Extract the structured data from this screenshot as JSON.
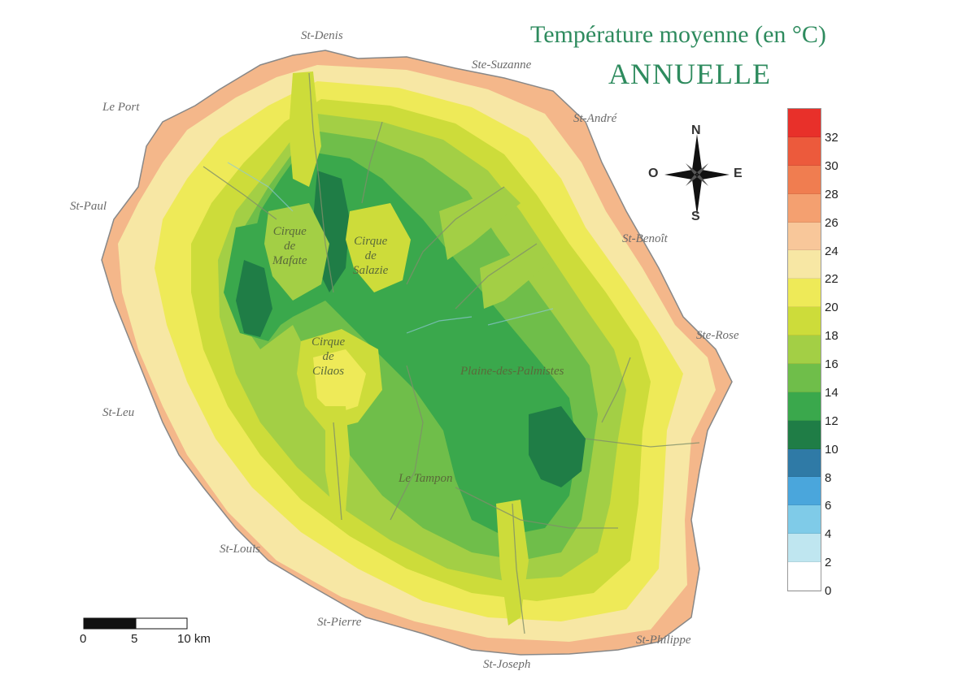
{
  "title": {
    "line1": "Température moyenne (en °C)",
    "line2": "ANNUELLE"
  },
  "places": {
    "st_denis": "St-Denis",
    "ste_suzanne": "Ste-Suzanne",
    "le_port": "Le Port",
    "st_andre": "St-André",
    "st_paul": "St-Paul",
    "st_benoit": "St-Benoît",
    "ste_rose": "Ste-Rose",
    "st_leu": "St-Leu",
    "st_louis": "St-Louis",
    "st_pierre": "St-Pierre",
    "st_joseph": "St-Joseph",
    "st_philippe": "St-Philippe",
    "le_tampon": "Le Tampon",
    "plaine_des_palmistes": "Plaine-des-Palmistes"
  },
  "cirques": {
    "mafate": [
      "Cirque",
      "de",
      "Mafate"
    ],
    "salazie": [
      "Cirque",
      "de",
      "Salazie"
    ],
    "cilaos": [
      "Cirque",
      "de",
      "Cilaos"
    ]
  },
  "compass": {
    "n": "N",
    "s": "S",
    "e": "E",
    "w": "O"
  },
  "scale": {
    "labels": [
      "0",
      "5",
      "10 km"
    ]
  },
  "legend": {
    "ticks": [
      "32",
      "30",
      "28",
      "26",
      "24",
      "22",
      "20",
      "18",
      "16",
      "14",
      "12",
      "10",
      "8",
      "6",
      "4",
      "2",
      "0"
    ],
    "colors": [
      "#e8302a",
      "#ec5a3c",
      "#f07d50",
      "#f4a070",
      "#f8c79a",
      "#f7e7a4",
      "#eeea58",
      "#cddc3a",
      "#a3cf45",
      "#6fbe4a",
      "#3aa84c",
      "#1f7d46",
      "#2f7aa6",
      "#4aa6dc",
      "#7fcbe8",
      "#bfe6f0",
      "#ffffff"
    ]
  },
  "colors": {
    "title": "#2e8b5e",
    "sea": "#ffffff"
  }
}
